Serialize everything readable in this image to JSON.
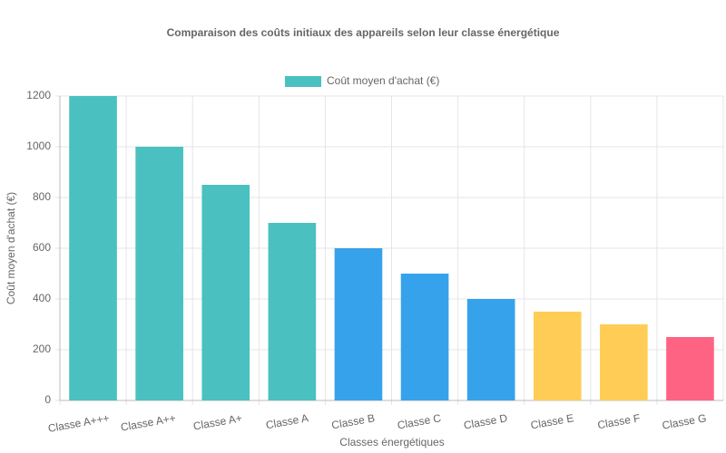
{
  "chart_data": {
    "type": "bar",
    "title": "Comparaison des coûts initiaux des appareils selon leur classe énergétique",
    "x_label": "Classes énergétiques",
    "y_label": "Coût moyen d'achat (€)",
    "categories": [
      "Classe A+++",
      "Classe A++",
      "Classe A+",
      "Classe A",
      "Classe B",
      "Classe C",
      "Classe D",
      "Classe E",
      "Classe F",
      "Classe G"
    ],
    "series": [
      {
        "name": "Coût moyen d'achat (€)",
        "color": "#4bc0c0",
        "colors": [
          "#4bc0c0",
          "#4bc0c0",
          "#4bc0c0",
          "#4bc0c0",
          "#36a2eb",
          "#36a2eb",
          "#36a2eb",
          "#ffcd56",
          "#ffcd56",
          "#ff6384"
        ],
        "values": [
          1200,
          1000,
          850,
          700,
          600,
          500,
          400,
          350,
          300,
          250
        ]
      }
    ],
    "ylim": [
      0,
      1200
    ],
    "yticks": [
      0,
      200,
      400,
      600,
      800,
      1000,
      1200
    ],
    "grid": true,
    "legend": "top"
  }
}
